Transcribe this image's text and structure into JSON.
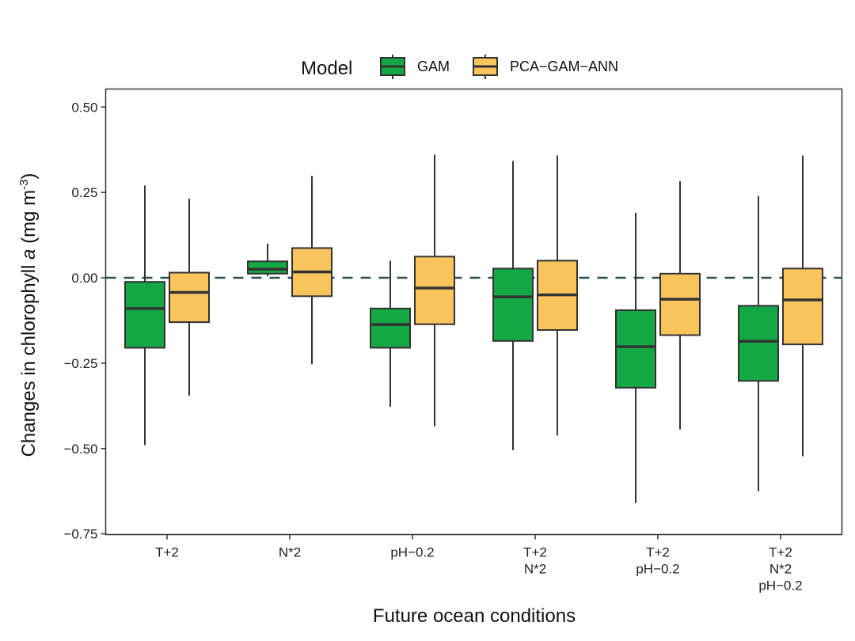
{
  "chart_data": {
    "type": "boxplot",
    "title": "",
    "xlabel": "Future ocean conditions",
    "ylabel": "Changes in chlorophyll a (mg m-3)",
    "ylabel_parts": {
      "prefix": "Changes in chlorophyll ",
      "italic": "a",
      "unit": " (mg m",
      "sup": "-3",
      "close": ")"
    },
    "ylim": [
      -0.76,
      0.54
    ],
    "yticks": [
      0.5,
      0.25,
      0.0,
      -0.25,
      -0.5,
      -0.75
    ],
    "ytick_labels": [
      "0.50",
      "0.25",
      "0.00",
      "−0.25",
      "−0.50",
      "−0.75"
    ],
    "grid": false,
    "reference_line": {
      "y": 0.0,
      "style": "dashed",
      "color": "#2f4f4f"
    },
    "legend": {
      "title": "Model",
      "position": "top",
      "entries": [
        {
          "name": "GAM",
          "color": "#13a843"
        },
        {
          "name": "PCA−GAM−ANN",
          "color": "#f9c45c"
        }
      ]
    },
    "categories": [
      {
        "label_lines": [
          "T+2"
        ]
      },
      {
        "label_lines": [
          "N*2"
        ]
      },
      {
        "label_lines": [
          "pH−0.2"
        ]
      },
      {
        "label_lines": [
          "T+2",
          "N*2"
        ]
      },
      {
        "label_lines": [
          "T+2",
          "pH−0.2"
        ]
      },
      {
        "label_lines": [
          "T+2",
          "N*2",
          "pH−0.2"
        ]
      }
    ],
    "series": [
      {
        "name": "GAM",
        "color": "#13a843",
        "boxes": [
          {
            "whisker_low": -0.49,
            "q1": -0.205,
            "median": -0.09,
            "q3": -0.012,
            "whisker_high": 0.27
          },
          {
            "whisker_low": 0.005,
            "q1": 0.012,
            "median": 0.025,
            "q3": 0.048,
            "whisker_high": 0.1
          },
          {
            "whisker_low": -0.378,
            "q1": -0.205,
            "median": -0.137,
            "q3": -0.09,
            "whisker_high": 0.05
          },
          {
            "whisker_low": -0.505,
            "q1": -0.185,
            "median": -0.056,
            "q3": 0.027,
            "whisker_high": 0.342
          },
          {
            "whisker_low": -0.66,
            "q1": -0.322,
            "median": -0.202,
            "q3": -0.095,
            "whisker_high": 0.19
          },
          {
            "whisker_low": -0.625,
            "q1": -0.302,
            "median": -0.186,
            "q3": -0.082,
            "whisker_high": 0.24
          }
        ]
      },
      {
        "name": "PCA−GAM−ANN",
        "color": "#f9c45c",
        "boxes": [
          {
            "whisker_low": -0.345,
            "q1": -0.13,
            "median": -0.043,
            "q3": 0.015,
            "whisker_high": 0.232
          },
          {
            "whisker_low": -0.253,
            "q1": -0.054,
            "median": 0.017,
            "q3": 0.087,
            "whisker_high": 0.298
          },
          {
            "whisker_low": -0.435,
            "q1": -0.136,
            "median": -0.03,
            "q3": 0.062,
            "whisker_high": 0.36
          },
          {
            "whisker_low": -0.462,
            "q1": -0.153,
            "median": -0.05,
            "q3": 0.05,
            "whisker_high": 0.358
          },
          {
            "whisker_low": -0.444,
            "q1": -0.168,
            "median": -0.063,
            "q3": 0.012,
            "whisker_high": 0.283
          },
          {
            "whisker_low": -0.523,
            "q1": -0.195,
            "median": -0.065,
            "q3": 0.027,
            "whisker_high": 0.358
          }
        ]
      }
    ]
  }
}
